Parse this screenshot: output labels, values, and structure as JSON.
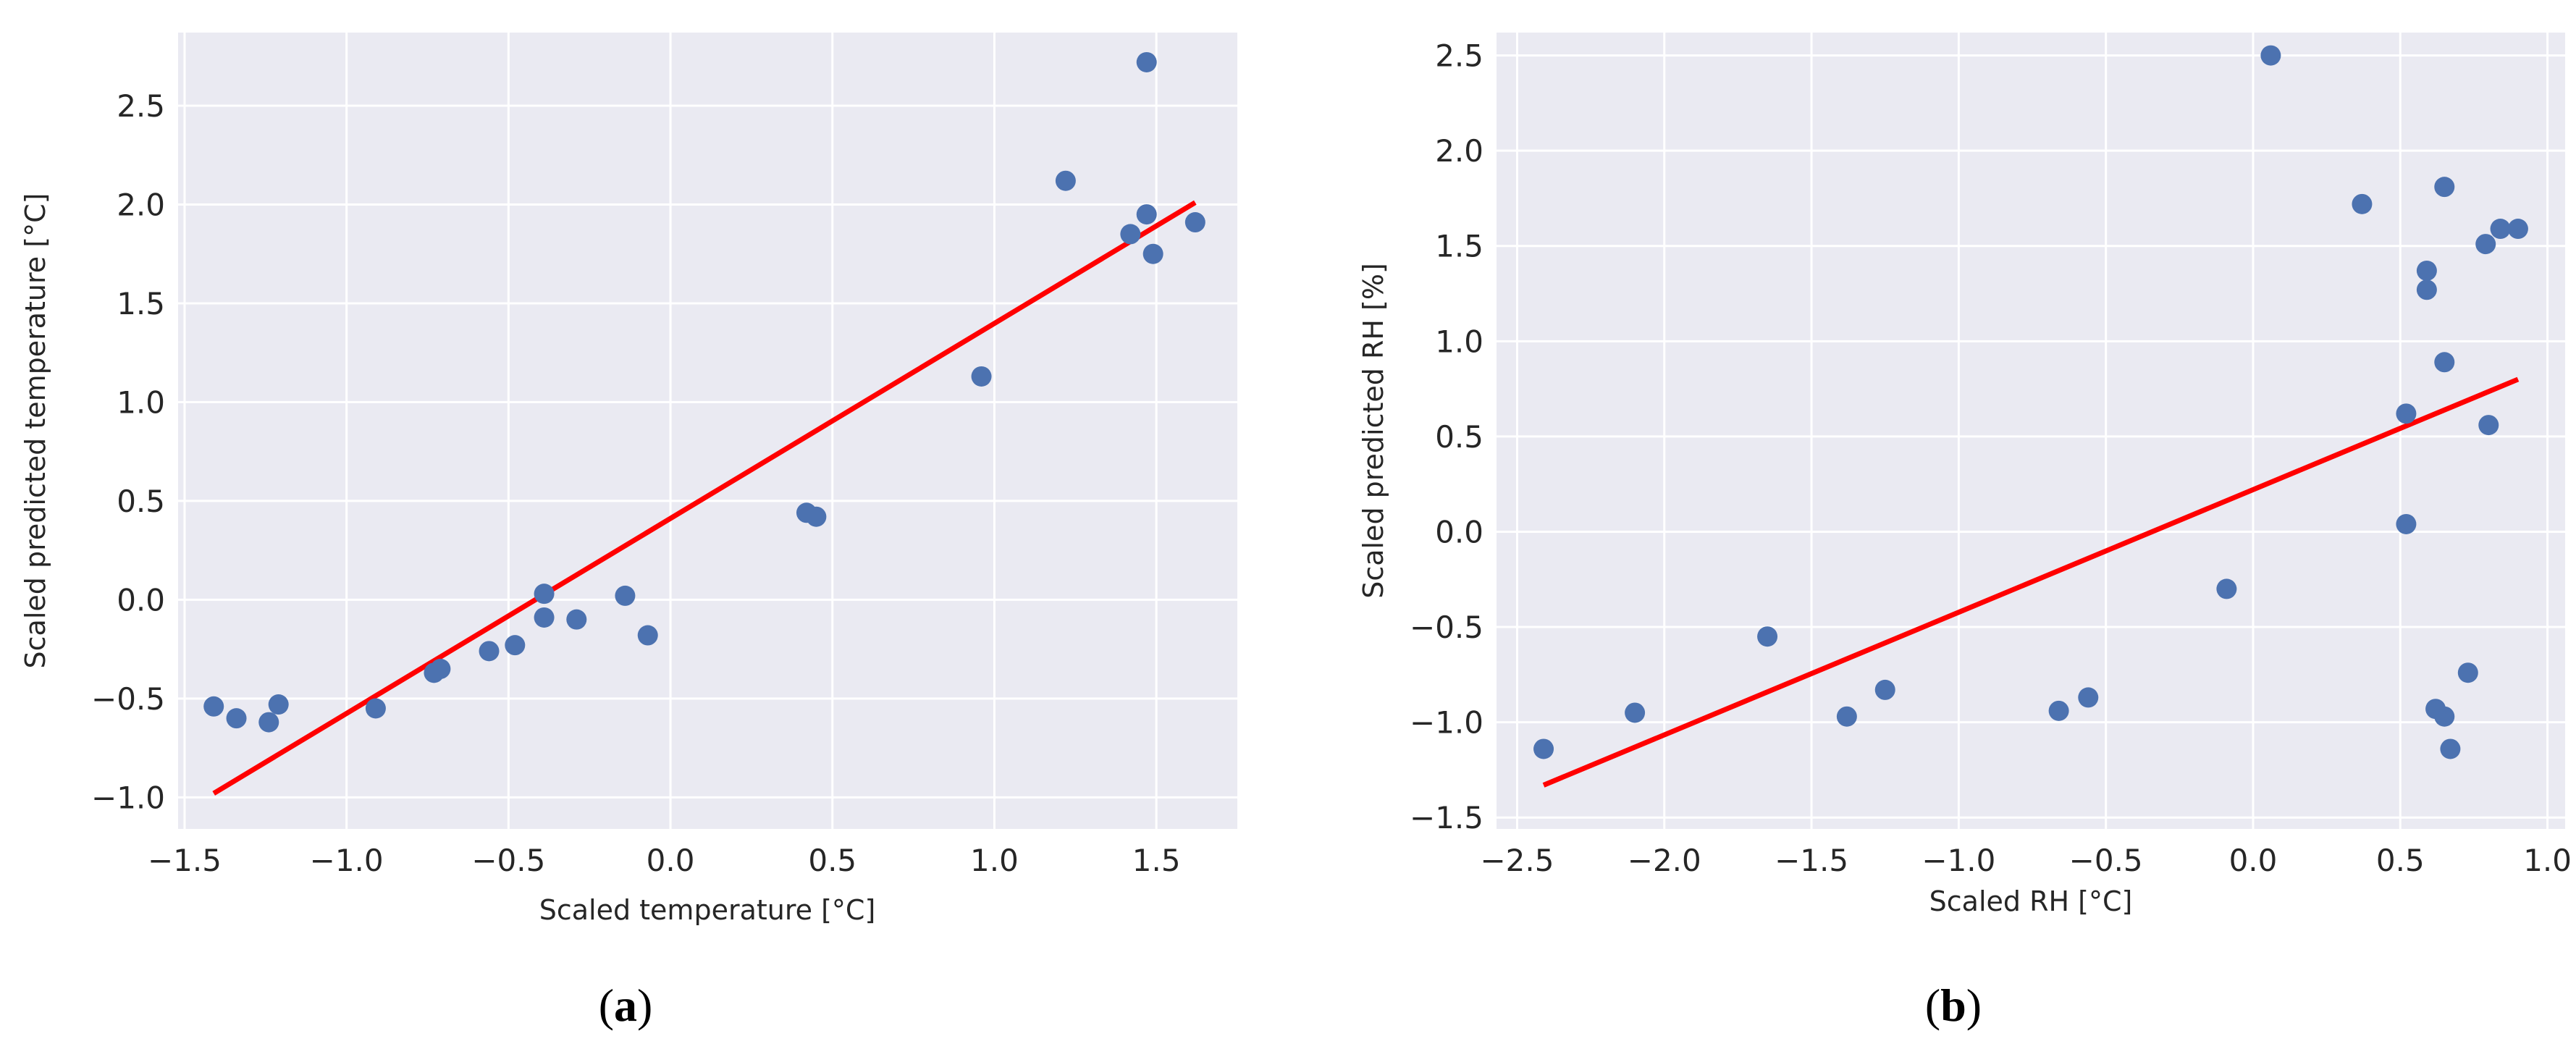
{
  "chart_data": [
    {
      "type": "scatter",
      "panel_label": "a",
      "xlabel": "Scaled temperature [°C]",
      "ylabel": "Scaled predicted temperature [°C]",
      "xlim": [
        -1.52,
        1.75
      ],
      "ylim": [
        -1.16,
        2.87
      ],
      "xticks": [
        -1.5,
        -1.0,
        -0.5,
        0.0,
        0.5,
        1.0,
        1.5
      ],
      "xtick_labels": [
        "−1.5",
        "−1.0",
        "−0.5",
        "0.0",
        "0.5",
        "1.0",
        "1.5"
      ],
      "yticks": [
        -1.0,
        -0.5,
        0.0,
        0.5,
        1.0,
        1.5,
        2.0,
        2.5
      ],
      "ytick_labels": [
        "−1.0",
        "−0.5",
        "0.0",
        "0.5",
        "1.0",
        "1.5",
        "2.0",
        "2.5"
      ],
      "grid": true,
      "points": [
        [
          -1.41,
          -0.54
        ],
        [
          -1.34,
          -0.6
        ],
        [
          -1.24,
          -0.62
        ],
        [
          -1.21,
          -0.53
        ],
        [
          -0.91,
          -0.55
        ],
        [
          -0.73,
          -0.37
        ],
        [
          -0.71,
          -0.35
        ],
        [
          -0.56,
          -0.26
        ],
        [
          -0.48,
          -0.23
        ],
        [
          -0.39,
          0.03
        ],
        [
          -0.39,
          -0.09
        ],
        [
          -0.29,
          -0.1
        ],
        [
          -0.14,
          0.02
        ],
        [
          -0.07,
          -0.18
        ],
        [
          0.42,
          0.44
        ],
        [
          0.45,
          0.42
        ],
        [
          0.96,
          1.13
        ],
        [
          1.22,
          2.12
        ],
        [
          1.42,
          1.85
        ],
        [
          1.47,
          1.95
        ],
        [
          1.47,
          2.72
        ],
        [
          1.49,
          1.75
        ],
        [
          1.62,
          1.91
        ]
      ],
      "fit_line": {
        "x": [
          -1.41,
          1.62
        ],
        "y": [
          -0.98,
          2.01
        ]
      },
      "point_color": "#4c72b0",
      "line_color": "#ff0000",
      "background": "#eaeaf2"
    },
    {
      "type": "scatter",
      "panel_label": "b",
      "xlabel": "Scaled RH [°C]",
      "ylabel": "Scaled predicted RH [%]",
      "xlim": [
        -2.57,
        1.06
      ],
      "ylim": [
        -1.56,
        2.62
      ],
      "xticks": [
        -2.5,
        -2.0,
        -1.5,
        -1.0,
        -0.5,
        0.0,
        0.5,
        1.0
      ],
      "xtick_labels": [
        "−2.5",
        "−2.0",
        "−1.5",
        "−1.0",
        "−0.5",
        "0.0",
        "0.5",
        "1.0"
      ],
      "yticks": [
        -1.5,
        -1.0,
        -0.5,
        0.0,
        0.5,
        1.0,
        1.5,
        2.0,
        2.5
      ],
      "ytick_labels": [
        "−1.5",
        "−1.0",
        "−0.5",
        "0.0",
        "0.5",
        "1.0",
        "1.5",
        "2.0",
        "2.5"
      ],
      "grid": true,
      "points": [
        [
          -2.41,
          -1.14
        ],
        [
          -2.1,
          -0.95
        ],
        [
          -1.65,
          -0.55
        ],
        [
          -1.38,
          -0.97
        ],
        [
          -1.25,
          -0.83
        ],
        [
          -0.66,
          -0.94
        ],
        [
          -0.56,
          -0.87
        ],
        [
          -0.09,
          -0.3
        ],
        [
          0.06,
          2.5
        ],
        [
          0.37,
          1.72
        ],
        [
          0.52,
          0.62
        ],
        [
          0.52,
          0.04
        ],
        [
          0.59,
          1.37
        ],
        [
          0.59,
          1.27
        ],
        [
          0.62,
          -0.93
        ],
        [
          0.65,
          1.81
        ],
        [
          0.65,
          0.89
        ],
        [
          0.65,
          -0.97
        ],
        [
          0.67,
          -1.14
        ],
        [
          0.73,
          -0.74
        ],
        [
          0.79,
          1.51
        ],
        [
          0.8,
          0.56
        ],
        [
          0.84,
          1.59
        ],
        [
          0.9,
          1.59
        ]
      ],
      "fit_line": {
        "x": [
          -2.41,
          0.9
        ],
        "y": [
          -1.33,
          0.8
        ]
      },
      "point_color": "#4c72b0",
      "line_color": "#ff0000",
      "background": "#eaeaf2"
    }
  ]
}
